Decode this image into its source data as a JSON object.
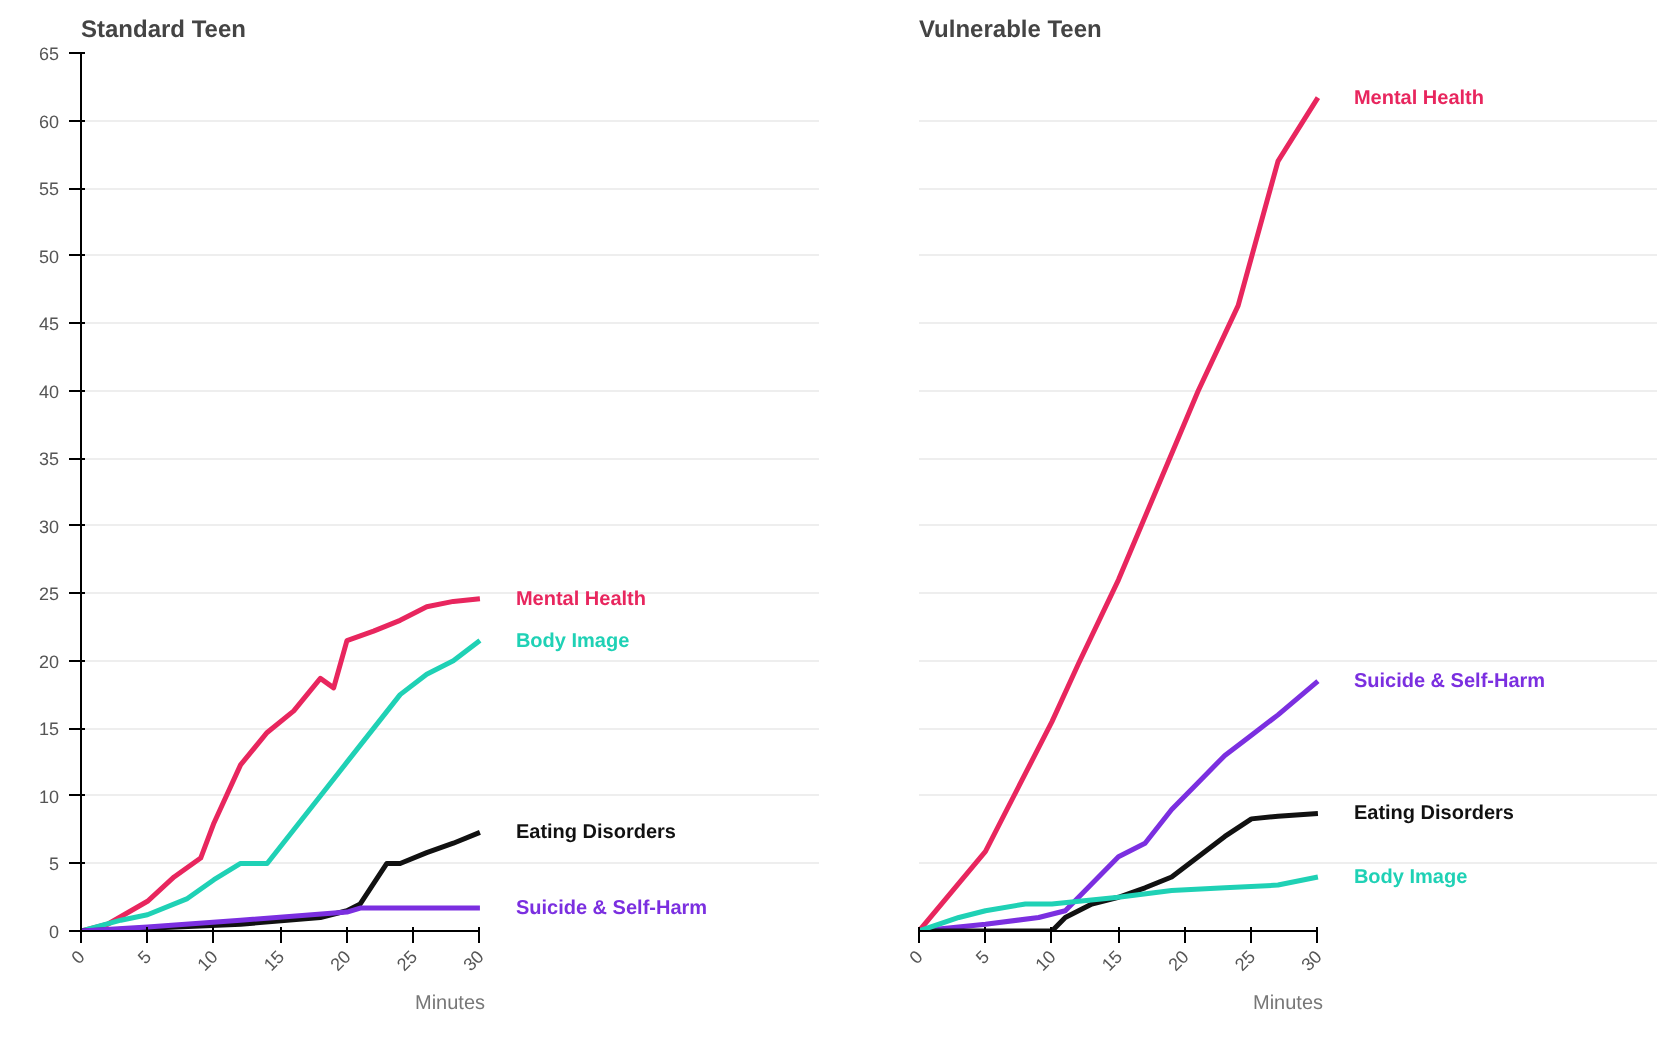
{
  "chart_data": [
    {
      "type": "line",
      "title": "Standard Teen",
      "xlabel": "Minutes",
      "xlim": [
        0,
        30
      ],
      "xticks": [
        0,
        5,
        10,
        15,
        20,
        25,
        30
      ],
      "ylim": [
        0,
        65
      ],
      "yticks": [
        0,
        5,
        10,
        15,
        20,
        25,
        30,
        35,
        40,
        45,
        50,
        55,
        60,
        65
      ],
      "grid": "y",
      "series": [
        {
          "name": "Mental Health",
          "color": "#e8265e",
          "x": [
            0,
            2,
            5,
            7,
            9,
            10,
            12,
            14,
            16,
            18,
            19,
            20,
            22,
            24,
            26,
            28,
            30
          ],
          "values": [
            0,
            0.5,
            2.2,
            4,
            5.4,
            8,
            12.3,
            14.7,
            16.3,
            18.7,
            18,
            21.5,
            22.2,
            23,
            24,
            24.4,
            24.6
          ]
        },
        {
          "name": "Body Image",
          "color": "#1fd1b5",
          "x": [
            0,
            3,
            5,
            8,
            10,
            12,
            14,
            16,
            18,
            20,
            22,
            24,
            26,
            28,
            30
          ],
          "values": [
            0,
            0.8,
            1.2,
            2.4,
            3.8,
            5,
            5,
            7.5,
            10,
            12.5,
            15,
            17.5,
            19,
            20,
            21.5
          ]
        },
        {
          "name": "Eating Disorders",
          "color": "#111111",
          "x": [
            0,
            5,
            12,
            18,
            20,
            21,
            22,
            23,
            24,
            26,
            28,
            30
          ],
          "values": [
            0,
            0.2,
            0.5,
            1,
            1.5,
            2,
            3.5,
            5,
            5,
            5.8,
            6.5,
            7.3
          ]
        },
        {
          "name": "Suicide & Self-Harm",
          "color": "#7b2fe0",
          "x": [
            0,
            5,
            12,
            20,
            21,
            30
          ],
          "values": [
            0,
            0.3,
            0.8,
            1.4,
            1.7,
            1.7
          ]
        }
      ]
    },
    {
      "type": "line",
      "title": "Vulnerable Teen",
      "xlabel": "Minutes",
      "xlim": [
        0,
        30
      ],
      "xticks": [
        0,
        5,
        10,
        15,
        20,
        25,
        30
      ],
      "ylim": [
        0,
        65
      ],
      "yticks": [
        0,
        5,
        10,
        15,
        20,
        25,
        30,
        35,
        40,
        45,
        50,
        55,
        60,
        65
      ],
      "grid": "y",
      "tick_labels": "x",
      "series": [
        {
          "name": "Mental Health",
          "color": "#e8265e",
          "x": [
            0,
            5,
            10,
            12,
            15,
            18,
            21,
            24,
            27,
            30
          ],
          "values": [
            0,
            5.9,
            15.5,
            19.8,
            26,
            33,
            40,
            46.3,
            57,
            61.7
          ]
        },
        {
          "name": "Suicide & Self-Harm",
          "color": "#7b2fe0",
          "x": [
            0,
            5,
            9,
            11,
            13,
            15,
            17,
            19,
            21,
            23,
            25,
            27,
            30
          ],
          "values": [
            0,
            0.5,
            1,
            1.5,
            3.5,
            5.5,
            6.5,
            9,
            11,
            13,
            14.5,
            16,
            18.5
          ]
        },
        {
          "name": "Eating Disorders",
          "color": "#111111",
          "x": [
            0,
            8,
            10,
            11,
            13,
            15,
            17,
            19,
            21,
            23,
            25,
            27,
            30
          ],
          "values": [
            0,
            0,
            0,
            1,
            2,
            2.5,
            3.2,
            4,
            5.5,
            7,
            8.3,
            8.5,
            8.7
          ]
        },
        {
          "name": "Body Image",
          "color": "#1fd1b5",
          "x": [
            0,
            3,
            5,
            8,
            10,
            15,
            19,
            23,
            27,
            30
          ],
          "values": [
            0,
            1,
            1.5,
            2,
            2,
            2.5,
            3,
            3.2,
            3.4,
            4
          ]
        }
      ]
    }
  ]
}
